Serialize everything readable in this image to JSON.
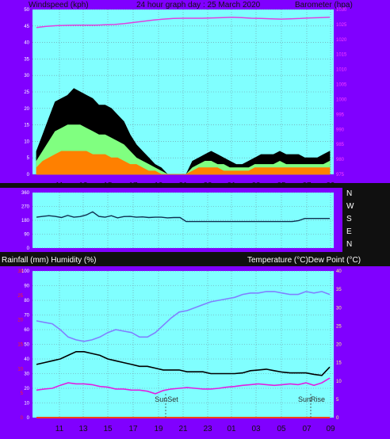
{
  "chart_data": [
    {
      "type": "line",
      "id": "wind-baro",
      "header": {
        "left": "Windspeed (kph)",
        "center": "24 hour graph day : 25 March 2020",
        "right": "Barometer (hpa)"
      },
      "x_ticks": [
        "11",
        "13",
        "15",
        "17",
        "19",
        "21",
        "23",
        "01",
        "03",
        "05",
        "07",
        "09"
      ],
      "y_left": {
        "ticks": [
          0,
          5,
          10,
          15,
          20,
          25,
          30,
          35,
          40,
          45,
          50
        ],
        "range": [
          0,
          50
        ]
      },
      "y_right": {
        "ticks": [
          975,
          980,
          985,
          990,
          995,
          1000,
          1005,
          1010,
          1015,
          1020,
          1025,
          1030
        ],
        "range": [
          975,
          1030
        ]
      },
      "series": [
        {
          "role": "wind_gust",
          "color": "#000000",
          "values": [
            7,
            12,
            17,
            22,
            23,
            24,
            26,
            25,
            24,
            23,
            21,
            21,
            20,
            18,
            16,
            12,
            9,
            7,
            5,
            3,
            2,
            0,
            0,
            0,
            0,
            4,
            5,
            6,
            7,
            6,
            5,
            4,
            3,
            3,
            4,
            5,
            6,
            6,
            6,
            7,
            6,
            6,
            6,
            5,
            5,
            5,
            6,
            7
          ]
        },
        {
          "role": "wind_avg",
          "color": "#80ff80",
          "values": [
            4,
            7,
            10,
            13,
            14,
            15,
            15,
            15,
            14,
            13,
            12,
            12,
            11,
            10,
            9,
            7,
            5,
            4,
            3,
            2,
            1,
            0,
            0,
            0,
            0,
            2,
            3,
            4,
            4,
            3,
            3,
            2,
            2,
            2,
            2,
            3,
            3,
            3,
            3,
            4,
            3,
            3,
            3,
            3,
            3,
            3,
            3,
            4
          ]
        },
        {
          "role": "wind_speed",
          "color": "#ff8000",
          "values": [
            2,
            4,
            5,
            6,
            7,
            7,
            7,
            7,
            7,
            6,
            6,
            6,
            5,
            5,
            4,
            3,
            3,
            2,
            1,
            1,
            0,
            0,
            0,
            0,
            0,
            1,
            2,
            2,
            2,
            2,
            1,
            1,
            1,
            1,
            1,
            2,
            2,
            2,
            2,
            2,
            2,
            2,
            2,
            2,
            2,
            2,
            2,
            2
          ]
        },
        {
          "role": "barometer",
          "color": "#e040e0",
          "axis": "right",
          "values": [
            1024.0,
            1024.4,
            1024.6,
            1024.7,
            1024.8,
            1024.8,
            1024.8,
            1024.9,
            1025.0,
            1025.3,
            1025.7,
            1026.1,
            1026.5,
            1026.8,
            1027.0,
            1027.1,
            1027.1,
            1027.1,
            1027.2,
            1027.3,
            1027.4,
            1027.3,
            1027.1,
            1027.0,
            1026.9,
            1026.8,
            1026.9,
            1027.0,
            1027.2,
            1027.3,
            1027.4
          ]
        }
      ]
    },
    {
      "type": "line",
      "id": "wind-direction",
      "y_left": {
        "ticks": [
          0,
          90,
          180,
          270,
          360
        ],
        "range": [
          0,
          360
        ]
      },
      "y_right_labels": [
        "N",
        "W",
        "S",
        "E",
        "N"
      ],
      "series": [
        {
          "role": "direction",
          "color": "#103050",
          "values": [
            200,
            205,
            210,
            205,
            198,
            212,
            200,
            204,
            215,
            235,
            205,
            200,
            210,
            196,
            204,
            205,
            200,
            202,
            198,
            200,
            200,
            196,
            198,
            198,
            172,
            172,
            172,
            172,
            172,
            172,
            172,
            172,
            172,
            172,
            172,
            172,
            172,
            172,
            172,
            172,
            172,
            172,
            178,
            192,
            192,
            192,
            192,
            192
          ]
        }
      ]
    },
    {
      "type": "line",
      "id": "temp-humidity",
      "header": {
        "left": "Rainfall (mm)  Humidity (%)",
        "right": "Temperature (°C)Dew Point (°C)"
      },
      "x_ticks": [
        "11",
        "13",
        "15",
        "17",
        "19",
        "21",
        "23",
        "01",
        "03",
        "05",
        "07",
        "09"
      ],
      "y_left": {
        "ticks": [
          0,
          10,
          20,
          30,
          40,
          50,
          60,
          70,
          80,
          90,
          100
        ],
        "range": [
          0,
          100
        ]
      },
      "y_rain": {
        "ticks": [
          0,
          5,
          10,
          15,
          20,
          25,
          30
        ],
        "range": [
          0,
          30
        ]
      },
      "y_right": {
        "ticks": [
          0,
          5,
          10,
          15,
          20,
          25,
          30,
          35,
          40
        ],
        "range": [
          0,
          40
        ]
      },
      "annotations": [
        {
          "text": "SunSet",
          "x": "19"
        },
        {
          "text": "SunRise",
          "x": "07"
        }
      ],
      "series": [
        {
          "role": "humidity",
          "color": "#8080ff",
          "values": [
            66,
            65,
            64,
            60,
            55,
            53,
            52,
            53,
            55,
            58,
            60,
            59,
            58,
            55,
            55,
            58,
            63,
            68,
            72,
            73,
            75,
            77,
            79,
            80,
            81,
            82,
            84,
            85,
            85,
            86,
            86,
            85,
            84,
            84,
            86,
            85,
            86,
            84
          ]
        },
        {
          "role": "temperature",
          "color": "#000000",
          "axis": "right",
          "values": [
            14.5,
            15,
            15.5,
            16,
            17,
            18,
            18,
            17.5,
            17,
            16,
            15.5,
            15,
            14.5,
            14,
            14,
            13.5,
            13,
            13,
            13,
            12.5,
            12.5,
            12.5,
            12,
            12,
            12,
            12,
            12.2,
            12.8,
            13,
            13.2,
            12.8,
            12.4,
            12.2,
            12.2,
            12.2,
            11.8,
            11.5,
            13.8
          ]
        },
        {
          "role": "dew_point",
          "color": "#e020e0",
          "axis": "right",
          "values": [
            7.5,
            7.8,
            8,
            8.8,
            9.5,
            9.2,
            9.2,
            9,
            8.5,
            8.3,
            7.8,
            7.8,
            7.5,
            7.5,
            7.2,
            6.5,
            7.4,
            7.8,
            8,
            8.2,
            8,
            7.8,
            7.8,
            8,
            8.3,
            8.5,
            8.8,
            9,
            9.2,
            9,
            8.8,
            9,
            9.2,
            9,
            9.5,
            8.8,
            9.5,
            10.8
          ]
        },
        {
          "role": "rainfall",
          "color": "#ff4000",
          "axis": "rain",
          "values": [
            0,
            0
          ]
        }
      ]
    }
  ],
  "side_labels": {
    "compass": [
      "N",
      "W",
      "S",
      "E",
      "N"
    ]
  },
  "colors": {
    "panel_bg": "#80ffff",
    "frame": "#8000ff",
    "grid": "#7090a0"
  }
}
